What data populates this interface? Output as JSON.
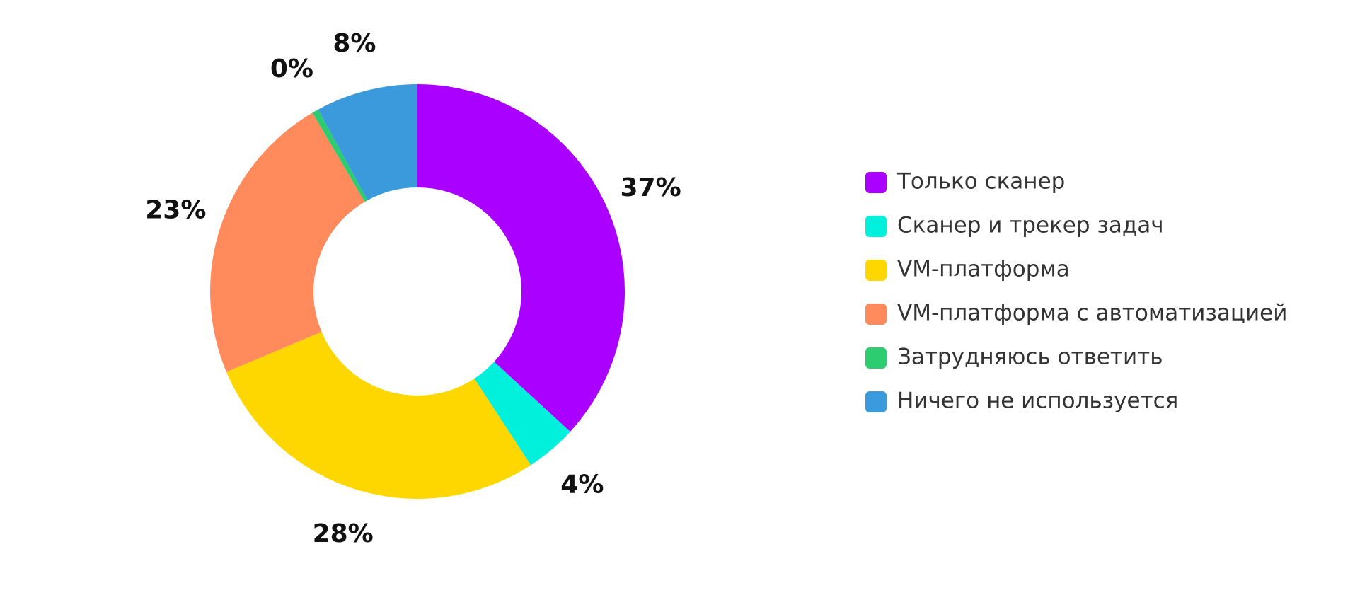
{
  "chart_data": {
    "type": "pie",
    "donut": true,
    "title": "",
    "categories": [
      "Только сканер",
      "Сканер и трекер задач",
      "VM-платформа",
      "VM-платформа с автоматизацией",
      "Затрудняюсь ответить",
      "Ничего не используется"
    ],
    "values": [
      37,
      4,
      28,
      23,
      0.5,
      8
    ],
    "labels": [
      "37%",
      "4%",
      "28%",
      "23%",
      "0%",
      "8%"
    ],
    "colors": [
      "#AA00FF",
      "#00F0DC",
      "#FFD700",
      "#FF8A5C",
      "#2ECC71",
      "#3A9ADC"
    ],
    "legend": {
      "position": "right"
    }
  }
}
